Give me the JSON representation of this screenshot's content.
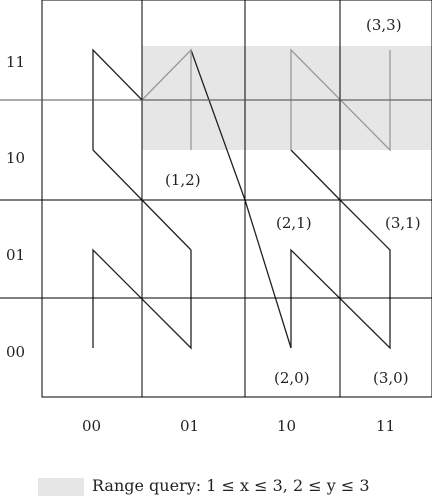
{
  "y_axis_labels": [
    "11",
    "10",
    "01",
    "00"
  ],
  "x_axis_labels": [
    "00",
    "01",
    "10",
    "11"
  ],
  "cell_labels": [
    "(3,3)",
    "(1,2)",
    "(2,1)",
    "(3,1)",
    "(2,0)",
    "(3,0)"
  ],
  "legend": {
    "text": "Range query: 1 ≤ x ≤ 3, 2 ≤ y ≤ 3"
  },
  "colors": {
    "highlight": "#e6e6e6",
    "curve": "#222222",
    "curve_in_query": "#999999",
    "grid": "#000000"
  },
  "query": {
    "x_range": [
      1,
      3
    ],
    "y_range": [
      2,
      3
    ]
  }
}
